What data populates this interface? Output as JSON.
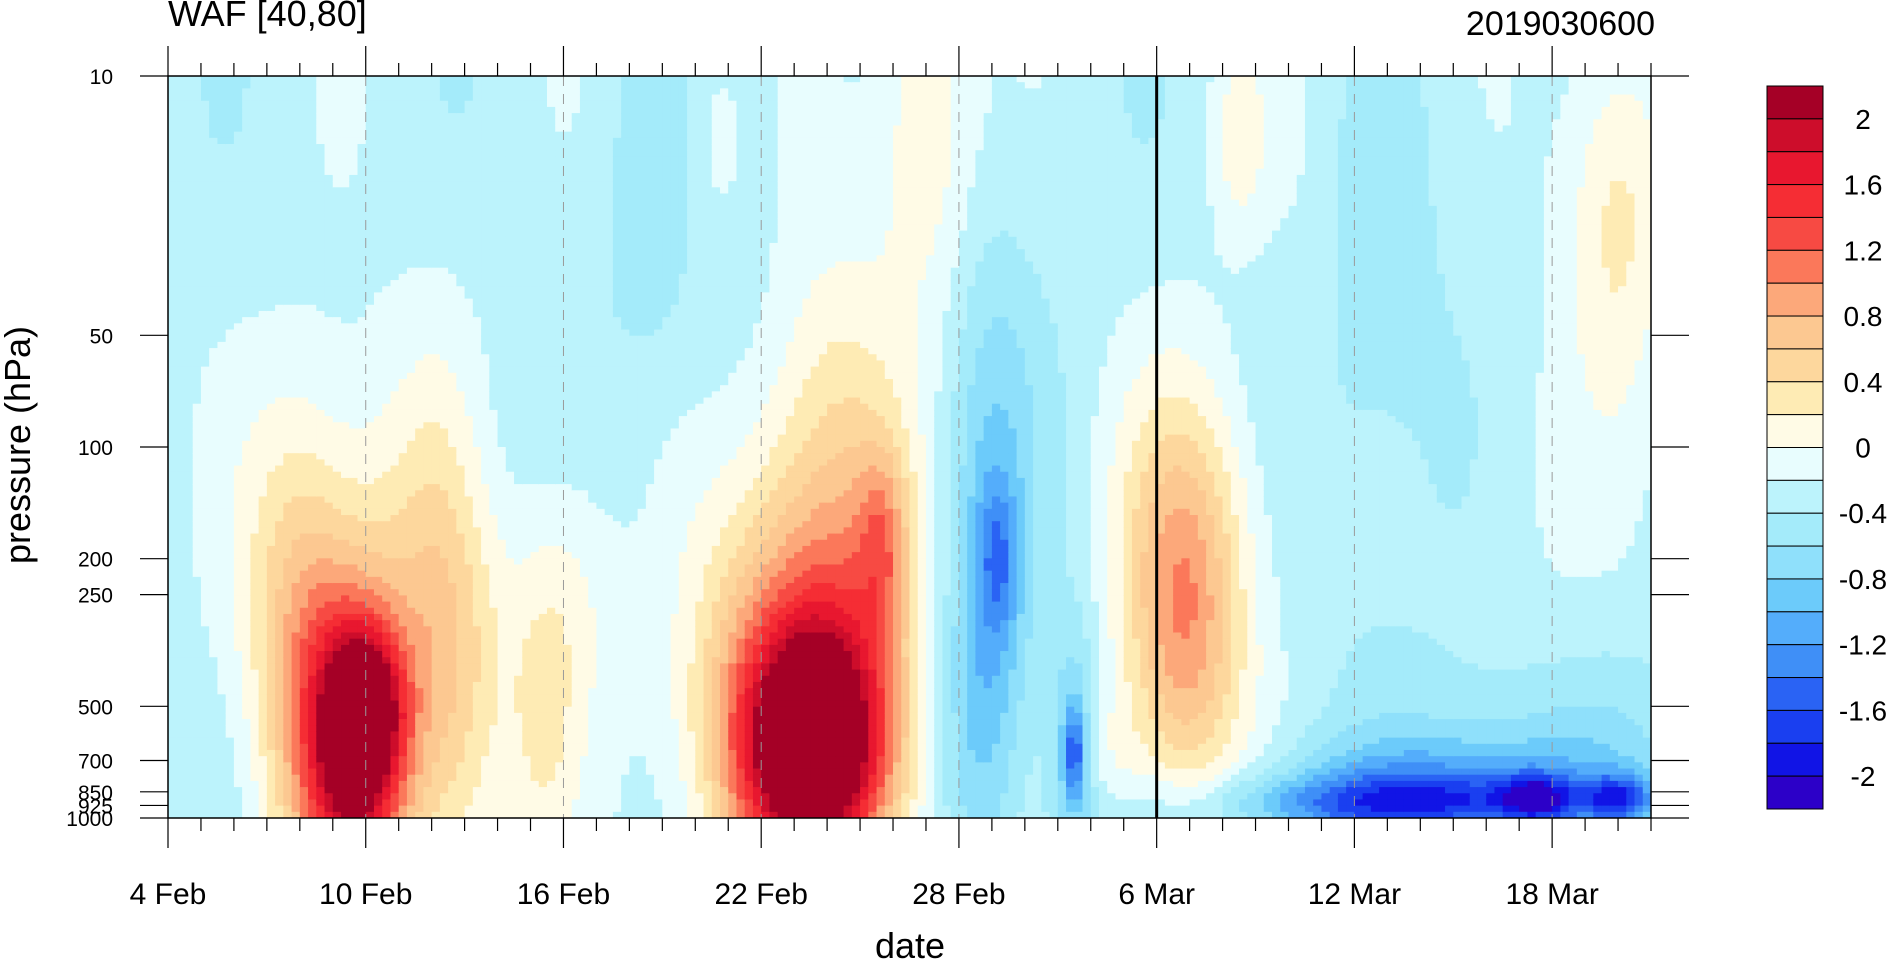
{
  "chart_data": {
    "type": "heatmap",
    "title_left": "WAF [40,80]",
    "title_right": "2019030600",
    "xlabel": "date",
    "ylabel": "pressure (hPa)",
    "x_start_date": "4 Feb",
    "x_end_date": "21 Mar",
    "x_tick_labels": [
      "4 Feb",
      "10 Feb",
      "16 Feb",
      "22 Feb",
      "28 Feb",
      "6 Mar",
      "12 Mar",
      "18 Mar"
    ],
    "x_tick_days": [
      0,
      6,
      12,
      18,
      24,
      30,
      36,
      42
    ],
    "x_range_days": [
      0,
      45
    ],
    "y_scale": "log",
    "y_range": [
      1000,
      10
    ],
    "y_tick_labels": [
      "10",
      "50",
      "100",
      "200",
      "250",
      "500",
      "700",
      "850",
      "925",
      "1000"
    ],
    "y_tick_values": [
      10,
      50,
      100,
      200,
      250,
      500,
      700,
      850,
      925,
      1000
    ],
    "vertical_marker_day": 30,
    "colorbar": {
      "labels": [
        "2",
        "1.6",
        "1.2",
        "0.8",
        "0.4",
        "0",
        "-0.4",
        "-0.8",
        "-1.2",
        "-1.6",
        "-2"
      ],
      "label_values": [
        2,
        1.6,
        1.2,
        0.8,
        0.4,
        0,
        -0.4,
        -0.8,
        -1.2,
        -1.6,
        -2
      ],
      "bins": [
        {
          "from": 2.0,
          "to": 2.2,
          "color": "#a50026"
        },
        {
          "from": 1.8,
          "to": 2.0,
          "color": "#cd0d2b"
        },
        {
          "from": 1.6,
          "to": 1.8,
          "color": "#e8172f"
        },
        {
          "from": 1.4,
          "to": 1.6,
          "color": "#f52d34"
        },
        {
          "from": 1.2,
          "to": 1.4,
          "color": "#f74a43"
        },
        {
          "from": 1.0,
          "to": 1.2,
          "color": "#fb785a"
        },
        {
          "from": 0.8,
          "to": 1.0,
          "color": "#fca87a"
        },
        {
          "from": 0.6,
          "to": 0.8,
          "color": "#fcc891"
        },
        {
          "from": 0.4,
          "to": 0.6,
          "color": "#fdd79d"
        },
        {
          "from": 0.2,
          "to": 0.4,
          "color": "#feebb4"
        },
        {
          "from": 0.0,
          "to": 0.2,
          "color": "#fffbe6"
        },
        {
          "from": -0.2,
          "to": 0.0,
          "color": "#e8fdfe"
        },
        {
          "from": -0.4,
          "to": -0.2,
          "color": "#bcf3fc"
        },
        {
          "from": -0.6,
          "to": -0.4,
          "color": "#a4ebfa"
        },
        {
          "from": -0.8,
          "to": -0.6,
          "color": "#8fe0fb"
        },
        {
          "from": -1.0,
          "to": -0.8,
          "color": "#6ccbfa"
        },
        {
          "from": -1.2,
          "to": -1.0,
          "color": "#54adfb"
        },
        {
          "from": -1.4,
          "to": -1.2,
          "color": "#3f8ff7"
        },
        {
          "from": -1.6,
          "to": -1.4,
          "color": "#2a63f4"
        },
        {
          "from": -1.8,
          "to": -1.6,
          "color": "#1a3ff0"
        },
        {
          "from": -2.0,
          "to": -1.8,
          "color": "#1114e6"
        },
        {
          "from": -2.2,
          "to": -2.0,
          "color": "#2c00c8"
        }
      ]
    },
    "field": {
      "background_value": -0.3,
      "features": [
        {
          "day": 5.7,
          "p": 650,
          "width_days": 1.4,
          "height_decades": 0.35,
          "value": 1.9
        },
        {
          "day": 4.2,
          "p": 500,
          "width_days": 1.5,
          "height_decades": 0.55,
          "value": 0.35
        },
        {
          "day": 6.5,
          "p": 400,
          "width_days": 3.2,
          "height_decades": 0.7,
          "value": 0.55
        },
        {
          "day": 3.8,
          "p": 200,
          "width_days": 1.8,
          "height_decades": 0.5,
          "value": 0.05
        },
        {
          "day": 6.1,
          "p": 500,
          "width_days": 1.0,
          "height_decades": 0.18,
          "value": 0.8
        },
        {
          "day": 9.5,
          "p": 120,
          "width_days": 1.5,
          "height_decades": 0.45,
          "value": -0.6
        },
        {
          "day": 8.7,
          "p": 300,
          "width_days": 1.6,
          "height_decades": 0.7,
          "value": 0.3
        },
        {
          "day": 12.1,
          "p": 260,
          "width_days": 1.6,
          "height_decades": 0.4,
          "value": 0.1
        },
        {
          "day": 11.4,
          "p": 600,
          "width_days": 1.0,
          "height_decades": 0.4,
          "value": 0.05
        },
        {
          "day": 14.6,
          "p": 20,
          "width_days": 1.4,
          "height_decades": 0.5,
          "value": -0.55
        },
        {
          "day": 16.5,
          "p": 15,
          "width_days": 1.1,
          "height_decades": 0.35,
          "value": 0.0
        },
        {
          "day": 17.0,
          "p": 120,
          "width_days": 2.0,
          "height_decades": 0.8,
          "value": -0.55
        },
        {
          "day": 19.5,
          "p": 650,
          "width_days": 2.2,
          "height_decades": 0.3,
          "value": 1.85
        },
        {
          "day": 19.3,
          "p": 500,
          "width_days": 3.1,
          "height_decades": 0.55,
          "value": 0.95
        },
        {
          "day": 20.5,
          "p": 260,
          "width_days": 2.2,
          "height_decades": 0.75,
          "value": 0.45
        },
        {
          "day": 21.7,
          "p": 180,
          "width_days": 0.8,
          "height_decades": 0.25,
          "value": 0.45
        },
        {
          "day": 20.1,
          "p": 70,
          "width_days": 2.1,
          "height_decades": 0.45,
          "value": -0.05
        },
        {
          "day": 17.5,
          "p": 300,
          "width_days": 2.2,
          "height_decades": 0.7,
          "value": 0.15
        },
        {
          "day": 23.0,
          "p": 14,
          "width_days": 1.5,
          "height_decades": 0.5,
          "value": 0.3
        },
        {
          "day": 25.0,
          "p": 200,
          "width_days": 1.2,
          "height_decades": 0.7,
          "value": -0.8
        },
        {
          "day": 25.2,
          "p": 200,
          "width_days": 0.6,
          "height_decades": 0.2,
          "value": -0.9
        },
        {
          "day": 24.5,
          "p": 500,
          "width_days": 1.3,
          "height_decades": 0.45,
          "value": -0.75
        },
        {
          "day": 27.5,
          "p": 650,
          "width_days": 0.8,
          "height_decades": 0.35,
          "value": -0.95
        },
        {
          "day": 27.5,
          "p": 670,
          "width_days": 0.3,
          "height_decades": 0.12,
          "value": -1.3
        },
        {
          "day": 24.5,
          "p": 80,
          "width_days": 2.5,
          "height_decades": 0.7,
          "value": -0.45
        },
        {
          "day": 28.5,
          "p": 700,
          "width_days": 1.0,
          "height_decades": 0.2,
          "value": 0.0
        },
        {
          "day": 30.8,
          "p": 350,
          "width_days": 1.6,
          "height_decades": 0.45,
          "value": 0.5
        },
        {
          "day": 31.0,
          "p": 250,
          "width_days": 2.4,
          "height_decades": 0.6,
          "value": 0.2
        },
        {
          "day": 30.8,
          "p": 150,
          "width_days": 2.0,
          "height_decades": 0.4,
          "value": 0.05
        },
        {
          "day": 32.5,
          "p": 15,
          "width_days": 0.8,
          "height_decades": 0.25,
          "value": 0.1
        },
        {
          "day": 36.5,
          "p": 60,
          "width_days": 2.6,
          "height_decades": 0.8,
          "value": -0.55
        },
        {
          "day": 34.5,
          "p": 20,
          "width_days": 1.5,
          "height_decades": 0.6,
          "value": -0.15
        },
        {
          "day": 44.0,
          "p": 22,
          "width_days": 1.6,
          "height_decades": 0.5,
          "value": 0.35
        },
        {
          "day": 41.5,
          "p": 120,
          "width_days": 2.0,
          "height_decades": 0.5,
          "value": -0.15
        },
        {
          "day": 37.5,
          "p": 920,
          "width_days": 6.0,
          "height_decades": 0.08,
          "value": -1.4
        },
        {
          "day": 39.0,
          "p": 800,
          "width_days": 5.0,
          "height_decades": 0.14,
          "value": -1.05
        },
        {
          "day": 42.0,
          "p": 600,
          "width_days": 4.5,
          "height_decades": 0.25,
          "value": -0.6
        },
        {
          "day": 41.5,
          "p": 880,
          "width_days": 1.0,
          "height_decades": 0.06,
          "value": -1.35
        },
        {
          "day": 44.0,
          "p": 880,
          "width_days": 1.0,
          "height_decades": 0.06,
          "value": -1.3
        }
      ]
    }
  }
}
